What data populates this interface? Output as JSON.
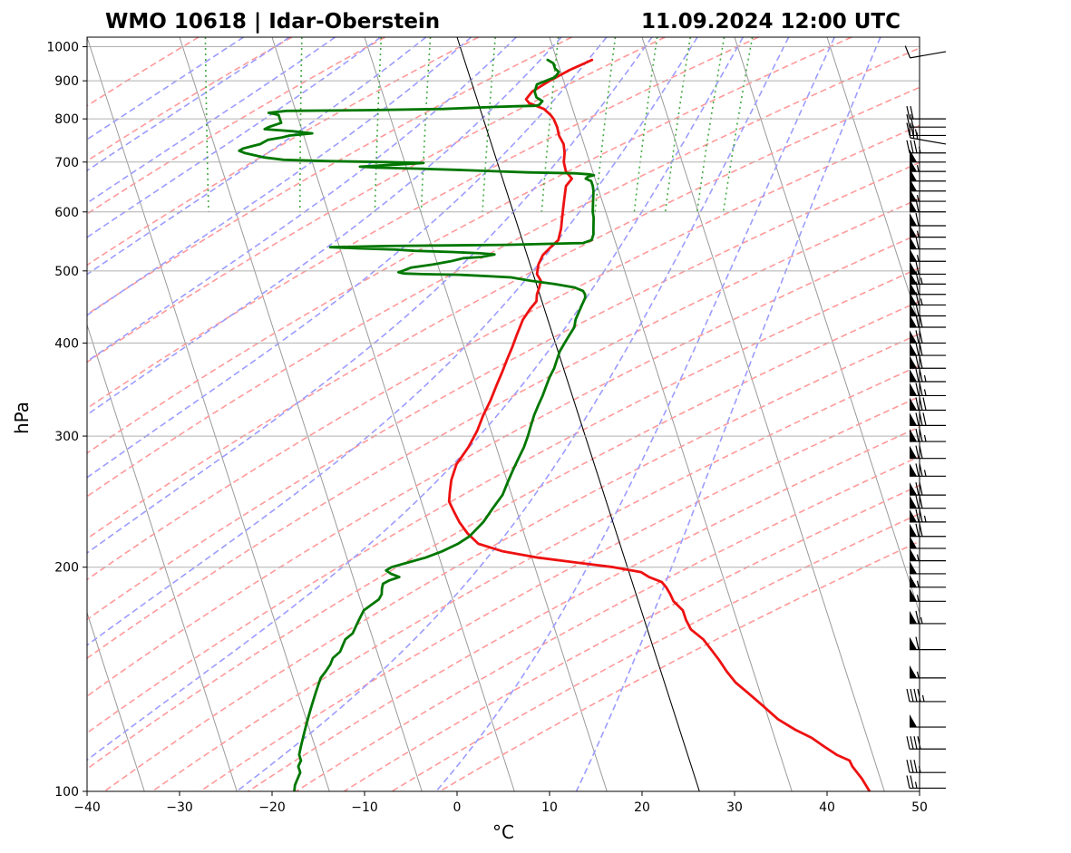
{
  "chart_data": {
    "type": "line",
    "title_left": "WMO 10618 | Idar-Oberstein",
    "title_right": "11.09.2024 12:00 UTC",
    "xlabel": "°C",
    "ylabel": "hPa",
    "xlim": [
      -40,
      50
    ],
    "ylim": [
      1030,
      100
    ],
    "y_scale": "log",
    "grid": true,
    "x_ticks": [
      "−40",
      "−30",
      "−20",
      "−10",
      "0",
      "10",
      "20",
      "30",
      "40",
      "50"
    ],
    "y_ticks": [
      "100",
      "200",
      "300",
      "400",
      "500",
      "600",
      "700",
      "800",
      "900",
      "1000"
    ],
    "background_lines": [
      "skewed isotherms (grey)",
      "dry adiabats (red dashed)",
      "moist adiabats (blue dashed)",
      "mixing ratio lines (green dotted)"
    ],
    "colors": {
      "temperature": "#ee1111",
      "dewpoint": "#007700",
      "dry_adiabat": "#ff9a9a",
      "moist_adiabat": "#9c9cff",
      "mixing_ratio": "#44aa44",
      "isotherm": "#9a9a9a",
      "grid": "#b0b0b0"
    },
    "series": [
      {
        "key": "temperature",
        "pressure": [
          960,
          930,
          900,
          870,
          850,
          840,
          825,
          810,
          800,
          780,
          760,
          740,
          720,
          700,
          680,
          665,
          650,
          630,
          610,
          590,
          570,
          550,
          540,
          525,
          510,
          495,
          485,
          475,
          465,
          455,
          445,
          430,
          410,
          395,
          380,
          365,
          350,
          335,
          320,
          305,
          290,
          275,
          262,
          252,
          245,
          237,
          230,
          222,
          215,
          210,
          206,
          203,
          200,
          197,
          194,
          191,
          188,
          184,
          180,
          175,
          170,
          165,
          160,
          155,
          150,
          145,
          140,
          135,
          130,
          125,
          121,
          118,
          115,
          112,
          110,
          108,
          106,
          104,
          102,
          100
        ],
        "values": [
          13.8,
          11,
          8.5,
          6.2,
          5.3,
          5.5,
          6.9,
          7.4,
          7.6,
          7.7,
          7.6,
          7.8,
          7.6,
          7.2,
          7.1,
          7.5,
          6.6,
          6.1,
          5.6,
          5.1,
          4.6,
          3.9,
          3.0,
          1.7,
          0.9,
          0.4,
          0.6,
          0.2,
          -0.3,
          -0.6,
          -1.5,
          -2.7,
          -3.9,
          -4.8,
          -5.8,
          -6.8,
          -7.9,
          -9.0,
          -10.3,
          -11.5,
          -13.0,
          -14.9,
          -16.0,
          -16.6,
          -17.0,
          -16.8,
          -16.6,
          -16.1,
          -15.3,
          -12.9,
          -9.3,
          -5.5,
          -1.5,
          1.3,
          2.0,
          3.2,
          3.5,
          3.7,
          3.8,
          4.5,
          4.5,
          4.7,
          5.7,
          6.2,
          6.7,
          7.1,
          7.7,
          8.8,
          9.9,
          11.0,
          12.5,
          14.0,
          15.0,
          16.1,
          17.3,
          17.4,
          17.7,
          18.0,
          18.2,
          18.4
        ]
      },
      {
        "key": "dewpoint",
        "pressure": [
          960,
          950,
          935,
          925,
          910,
          890,
          870,
          855,
          845,
          835,
          833,
          832,
          830,
          825,
          822,
          820,
          815,
          810,
          800,
          790,
          780,
          775,
          770,
          765,
          760,
          755,
          750,
          745,
          740,
          735,
          730,
          725,
          720,
          715,
          710,
          705,
          702,
          700,
          698,
          695,
          690,
          688,
          686,
          683,
          680,
          678,
          677,
          676,
          674,
          672,
          670,
          668,
          665,
          660,
          650,
          640,
          630,
          620,
          610,
          600,
          590,
          580,
          570,
          560,
          550,
          545,
          542,
          540,
          538,
          536,
          534,
          532,
          530,
          528,
          526,
          522,
          520,
          515,
          510,
          505,
          500,
          498,
          496,
          495,
          494,
          492,
          490,
          485,
          480,
          475,
          470,
          465,
          460,
          455,
          450,
          440,
          430,
          420,
          410,
          400,
          390,
          380,
          370,
          360,
          350,
          340,
          330,
          320,
          310,
          300,
          290,
          280,
          270,
          260,
          250,
          240,
          230,
          220,
          215,
          210,
          206,
          203,
          200,
          198,
          196,
          194,
          192,
          190,
          187,
          184,
          181,
          178,
          175,
          172,
          169,
          166,
          163,
          160,
          157,
          154,
          151,
          148,
          145,
          142,
          139,
          136,
          133,
          130,
          127,
          124,
          121,
          118,
          115,
          112,
          110,
          108,
          106,
          104,
          102,
          100
        ],
        "values": [
          9.0,
          9.5,
          9.5,
          9.8,
          9.2,
          7.0,
          6.5,
          6.5,
          7.0,
          6.5,
          6.0,
          4.0,
          1.5,
          -4.0,
          -12.0,
          -21.0,
          -23.0,
          -22.0,
          -22.0,
          -22.0,
          -23.5,
          -24.0,
          -21.0,
          -19.0,
          -21.5,
          -22.5,
          -24.0,
          -24.5,
          -25.0,
          -26.0,
          -27.0,
          -27.5,
          -27.0,
          -26.0,
          -25.0,
          -23.0,
          -18.0,
          -12.0,
          -8.0,
          -10.5,
          -15.0,
          -13.0,
          -9.0,
          -4.0,
          0.0,
          3.0,
          5.5,
          8.0,
          9.5,
          10.0,
          9.5,
          9.2,
          9.0,
          9.5,
          9.5,
          9.4,
          9.2,
          9.0,
          8.8,
          8.6,
          8.5,
          8.3,
          8.1,
          7.9,
          7.5,
          6.5,
          -2.0,
          -15.0,
          -21.0,
          -18.0,
          -14.0,
          -12.0,
          -8.0,
          -5.0,
          -3.5,
          -5.0,
          -7.0,
          -8.5,
          -10.5,
          -13.0,
          -14.0,
          -14.5,
          -14.0,
          -12.0,
          -8.0,
          -5.0,
          -2.5,
          -0.5,
          2.0,
          4.0,
          4.8,
          4.9,
          4.8,
          4.5,
          4.2,
          3.6,
          3.0,
          2.6,
          1.8,
          1.0,
          0.2,
          -0.4,
          -1.0,
          -1.8,
          -2.5,
          -3.2,
          -4.0,
          -4.8,
          -5.5,
          -6.2,
          -7.0,
          -8.0,
          -9.0,
          -10.0,
          -11.0,
          -12.5,
          -14.0,
          -16.0,
          -17.5,
          -19.5,
          -21.5,
          -23.5,
          -25.5,
          -26.2,
          -25.8,
          -25.0,
          -26.2,
          -27.0,
          -27.3,
          -27.5,
          -28.0,
          -29.0,
          -30.0,
          -30.5,
          -31.0,
          -31.5,
          -32.0,
          -33.0,
          -33.5,
          -34.0,
          -35.0,
          -35.5,
          -36.2,
          -37.0,
          -37.5,
          -38.0,
          -38.5,
          -39.0,
          -39.5,
          -40.0,
          -40.5,
          -41.0,
          -41.5,
          -42.0,
          -42.0,
          -42.5,
          -42.5,
          -43.0,
          -43.5,
          -43.8
        ]
      }
    ],
    "wind_barbs": {
      "pressure": [
        985,
        800,
        780,
        760,
        740,
        720,
        700,
        680,
        660,
        640,
        620,
        600,
        575,
        555,
        535,
        515,
        495,
        480,
        465,
        450,
        435,
        420,
        400,
        385,
        370,
        355,
        340,
        325,
        310,
        295,
        280,
        265,
        250,
        240,
        230,
        220,
        212,
        204,
        196,
        188,
        180,
        168,
        155,
        142,
        132,
        122,
        114,
        106,
        101
      ],
      "speed_kt": [
        10,
        20,
        20,
        25,
        25,
        35,
        50,
        55,
        50,
        50,
        55,
        60,
        60,
        55,
        60,
        55,
        60,
        65,
        60,
        65,
        60,
        70,
        70,
        70,
        70,
        75,
        75,
        80,
        80,
        75,
        70,
        75,
        70,
        70,
        75,
        70,
        50,
        55,
        50,
        55,
        55,
        65,
        60,
        55,
        45,
        50,
        40,
        35,
        25
      ],
      "direction_deg": [
        260,
        270,
        270,
        270,
        280,
        270,
        270,
        270,
        270,
        270,
        270,
        270,
        270,
        270,
        270,
        270,
        270,
        270,
        270,
        270,
        270,
        270,
        270,
        270,
        270,
        270,
        270,
        270,
        270,
        270,
        270,
        270,
        270,
        270,
        270,
        270,
        270,
        270,
        270,
        270,
        270,
        270,
        270,
        270,
        270,
        270,
        270,
        270,
        270
      ]
    }
  }
}
